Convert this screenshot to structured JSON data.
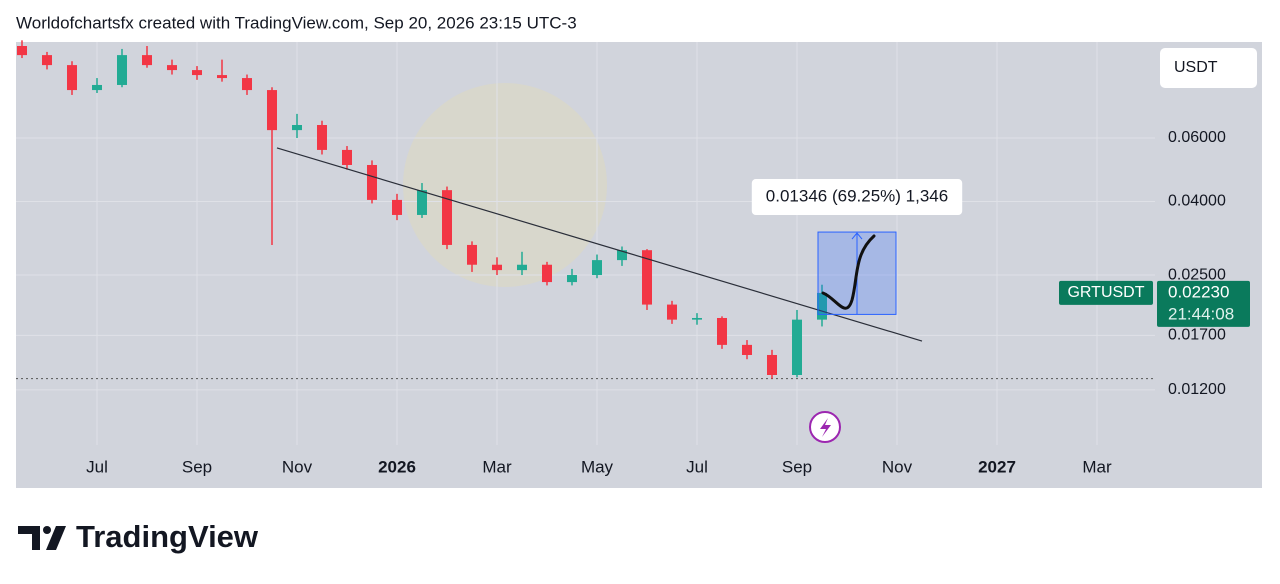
{
  "chart_data": {
    "type": "candlestick",
    "header": "Worldofchartsfx created with TradingView.com, Sep 20, 2026 23:15 UTC-3",
    "currency": "USDT",
    "symbol": "GRTUSDT",
    "last_price": {
      "value": 0.0223,
      "label": "0.02230"
    },
    "countdown": "21:44:08",
    "footer": "TradingView",
    "x": [
      5.5,
      6.0,
      6.5,
      7.0,
      7.5,
      8.0,
      8.5,
      9.0,
      9.5,
      10.0,
      10.5,
      11.0,
      11.5,
      12.0,
      12.5,
      13.0,
      13.5,
      14.0,
      14.5,
      15.0,
      15.5,
      16.0,
      16.5,
      17.0,
      17.5,
      18.0,
      18.5,
      19.0,
      19.5,
      20.0,
      20.5,
      21.0,
      21.5
    ],
    "open": [
      0.108,
      0.1019,
      0.0956,
      0.0815,
      0.0842,
      0.1019,
      0.0956,
      0.0926,
      0.0897,
      0.088,
      0.0815,
      0.0631,
      0.0652,
      0.0556,
      0.0505,
      0.0404,
      0.0367,
      0.043,
      0.0303,
      0.0267,
      0.0258,
      0.0267,
      0.0239,
      0.025,
      0.0275,
      0.0293,
      0.0207,
      0.0188,
      0.019,
      0.016,
      0.015,
      0.0132,
      0.0188
    ],
    "high": [
      0.112,
      0.104,
      0.098,
      0.088,
      0.106,
      0.108,
      0.099,
      0.095,
      0.099,
      0.09,
      0.083,
      0.07,
      0.067,
      0.057,
      0.052,
      0.042,
      0.045,
      0.044,
      0.031,
      0.028,
      0.029,
      0.0272,
      0.026,
      0.0285,
      0.03,
      0.0295,
      0.0212,
      0.0196,
      0.0192,
      0.0165,
      0.0155,
      0.02,
      0.0235
    ],
    "low": [
      0.1,
      0.093,
      0.079,
      0.08,
      0.083,
      0.094,
      0.09,
      0.087,
      0.086,
      0.079,
      0.0303,
      0.06,
      0.054,
      0.049,
      0.0395,
      0.0355,
      0.036,
      0.0295,
      0.0255,
      0.025,
      0.025,
      0.0234,
      0.0234,
      0.0245,
      0.0265,
      0.02,
      0.0183,
      0.0182,
      0.0156,
      0.0146,
      0.0129,
      0.013,
      0.018
    ],
    "close": [
      0.1019,
      0.0956,
      0.0815,
      0.0842,
      0.1019,
      0.0956,
      0.0926,
      0.0897,
      0.088,
      0.0815,
      0.0631,
      0.0652,
      0.0556,
      0.0505,
      0.0404,
      0.0367,
      0.043,
      0.0303,
      0.0267,
      0.0258,
      0.0267,
      0.0239,
      0.025,
      0.0275,
      0.0293,
      0.0207,
      0.0188,
      0.019,
      0.016,
      0.015,
      0.0132,
      0.0188,
      0.0223
    ],
    "up_color": "#22ab94",
    "down_color": "#f23645",
    "log_scale": true,
    "grid": true,
    "ylim": [
      0.00844,
      0.1108
    ],
    "yticks": [
      {
        "value": 0.06,
        "label": "0.06000"
      },
      {
        "value": 0.04,
        "label": "0.04000"
      },
      {
        "value": 0.025,
        "label": "0.02500"
      },
      {
        "value": 0.017,
        "label": "0.01700"
      },
      {
        "value": 0.012,
        "label": "0.01200"
      }
    ],
    "xlim": [
      5.38,
      28.16
    ],
    "xticks": [
      {
        "value": 7,
        "label": "Jul"
      },
      {
        "value": 9,
        "label": "Sep"
      },
      {
        "value": 11,
        "label": "Nov"
      },
      {
        "value": 13,
        "label": "2026"
      },
      {
        "value": 15,
        "label": "Mar"
      },
      {
        "value": 17,
        "label": "May"
      },
      {
        "value": 19,
        "label": "Jul"
      },
      {
        "value": 21,
        "label": "Sep"
      },
      {
        "value": 23,
        "label": "Nov"
      },
      {
        "value": 25,
        "label": "2027"
      },
      {
        "value": 27,
        "label": "Mar"
      }
    ],
    "trendline": {
      "x": [
        10.6,
        23.5
      ],
      "y": [
        0.0563,
        0.0164
      ]
    },
    "price_line": 0.0129,
    "measure": {
      "x": [
        21.42,
        22.98
      ],
      "y": [
        0.01944,
        0.0329
      ],
      "label": "0.01346 (69.25%) 1,346"
    }
  }
}
